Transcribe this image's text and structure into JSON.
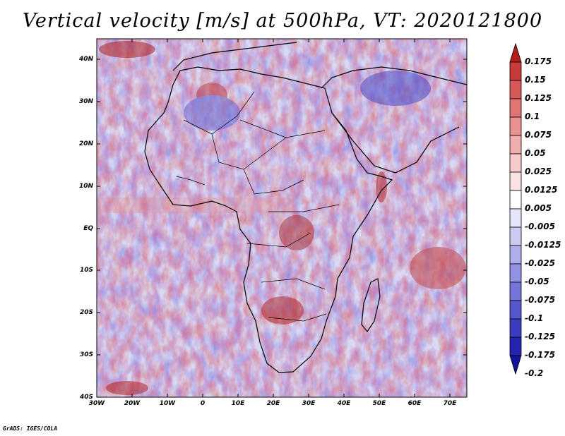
{
  "title": "Vertical velocity [m/s] at 500hPa, VT: 2020121800",
  "map": {
    "lat_labels": [
      "40N",
      "30N",
      "20N",
      "10N",
      "EQ",
      "10S",
      "20S",
      "30S",
      "40S"
    ],
    "lon_labels": [
      "30W",
      "20W",
      "10W",
      "0",
      "10E",
      "20E",
      "30E",
      "40E",
      "50E",
      "60E",
      "70E"
    ],
    "lat_range": [
      -40,
      45
    ],
    "lon_range": [
      -30,
      75
    ]
  },
  "colorbar": {
    "labels": [
      "0.175",
      "0.15",
      "0.125",
      "0.1",
      "0.075",
      "0.05",
      "0.025",
      "0.0125",
      "0.005",
      "-0.005",
      "-0.0125",
      "-0.025",
      "-0.05",
      "-0.075",
      "-0.1",
      "-0.125",
      "-0.175",
      "-0.2"
    ],
    "colors": [
      "#b01d1d",
      "#c93a3a",
      "#d85757",
      "#e27474",
      "#ea9292",
      "#f1aeae",
      "#f6caca",
      "#fae2e2",
      "#ffffff",
      "#e6e6fb",
      "#cacaf3",
      "#aeaeeb",
      "#9292e2",
      "#7575d9",
      "#5858ce",
      "#3c3cc1",
      "#2424b0",
      "#12129a"
    ]
  },
  "footer": "GrADS: IGES/COLA"
}
